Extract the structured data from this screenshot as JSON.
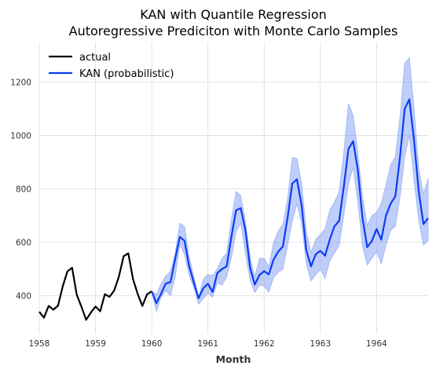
{
  "chart_data": {
    "type": "line",
    "title": "KAN with Quantile Regression",
    "subtitle": "Autoregressive Prediciton with Monte Carlo Samples",
    "xlabel": "Month",
    "ylabel": "",
    "xlim": [
      1958.0,
      1964.917
    ],
    "ylim": [
      258,
      1348
    ],
    "x_ticks": [
      {
        "value": 1958,
        "label": "1958"
      },
      {
        "value": 1959,
        "label": "1959"
      },
      {
        "value": 1960,
        "label": "1960"
      },
      {
        "value": 1961,
        "label": "1961"
      },
      {
        "value": 1962,
        "label": "1962"
      },
      {
        "value": 1963,
        "label": "1963"
      },
      {
        "value": 1964,
        "label": "1964"
      }
    ],
    "y_ticks": [
      {
        "value": 400,
        "label": "400"
      },
      {
        "value": 600,
        "label": "600"
      },
      {
        "value": 800,
        "label": "800"
      },
      {
        "value": 1000,
        "label": "1000"
      },
      {
        "value": 1200,
        "label": "1200"
      }
    ],
    "grid": true,
    "legend_position": "top-left",
    "series": [
      {
        "name": "actual",
        "color": "#000000",
        "start": 1958.0,
        "step_months": 1,
        "values": [
          340,
          318,
          362,
          348,
          363,
          435,
          491,
          505,
          404,
          359,
          310,
          337,
          360,
          342,
          406,
          396,
          420,
          472,
          548,
          559,
          463,
          407,
          362,
          405,
          417
        ]
      },
      {
        "name": "KAN (probabilistic)",
        "color": "#0b3cf5",
        "band_color": "#7f9cf5",
        "start": 1960.0,
        "step_months": 1,
        "values": [
          417,
          372,
          408,
          446,
          451,
          537,
          620,
          606,
          510,
          449,
          391,
          428,
          445,
          414,
          485,
          500,
          510,
          620,
          720,
          728,
          645,
          505,
          442,
          478,
          492,
          480,
          535,
          565,
          585,
          692,
          820,
          836,
          738,
          570,
          510,
          555,
          568,
          550,
          610,
          660,
          680,
          808,
          950,
          978,
          870,
          690,
          582,
          605,
          650,
          610,
          700,
          745,
          772,
          920,
          1100,
          1135,
          980,
          790,
          668,
          690
        ],
        "lower": [
          417,
          342,
          395,
          420,
          400,
          470,
          592,
          555,
          476,
          430,
          368,
          390,
          410,
          395,
          448,
          440,
          470,
          542,
          640,
          672,
          560,
          458,
          412,
          440,
          436,
          414,
          468,
          488,
          500,
          588,
          680,
          745,
          670,
          520,
          455,
          478,
          500,
          465,
          530,
          560,
          588,
          700,
          820,
          880,
          750,
          585,
          515,
          540,
          565,
          520,
          590,
          645,
          660,
          770,
          920,
          1000,
          830,
          680,
          590,
          605
        ],
        "upper": [
          417,
          405,
          445,
          475,
          490,
          560,
          672,
          660,
          545,
          470,
          395,
          462,
          480,
          475,
          500,
          540,
          558,
          685,
          790,
          775,
          680,
          545,
          470,
          540,
          540,
          508,
          598,
          642,
          668,
          760,
          918,
          913,
          822,
          640,
          562,
          610,
          630,
          650,
          720,
          750,
          790,
          935,
          1120,
          1075,
          935,
          768,
          664,
          700,
          712,
          745,
          815,
          890,
          920,
          1068,
          1270,
          1290,
          1098,
          875,
          780,
          838
        ]
      }
    ]
  }
}
